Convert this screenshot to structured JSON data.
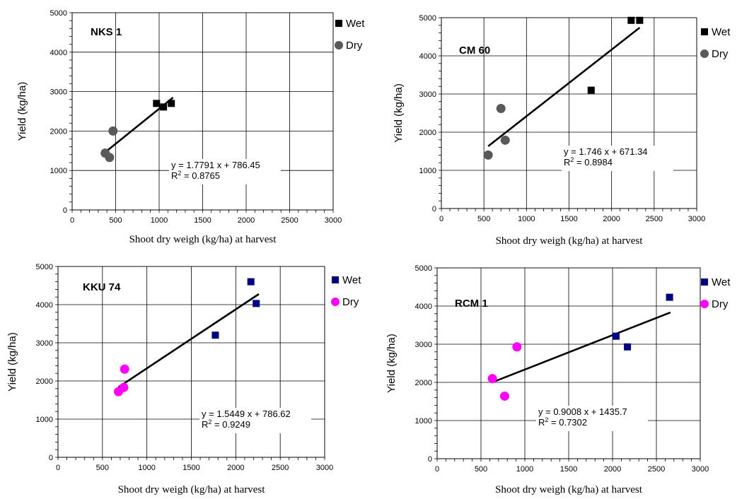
{
  "chart_data": [
    {
      "type": "scatter",
      "title": "NKS 1",
      "xlabel": "Shoot dry weigh (kg/ha) at harvest",
      "ylabel": "Yield (kg/ha)",
      "xlim": [
        0,
        3000
      ],
      "ylim": [
        0,
        5000
      ],
      "xticks": [
        "0",
        "500",
        "1000",
        "1500",
        "2000",
        "2500",
        "3000"
      ],
      "yticks": [
        "0",
        "1000",
        "2000",
        "3000",
        "4000",
        "5000"
      ],
      "grid": true,
      "legend_position": "top-right",
      "series": [
        {
          "name": "Wet",
          "marker": "square",
          "color": "#000000",
          "points": [
            [
              970,
              2700
            ],
            [
              1050,
              2610
            ],
            [
              1140,
              2700
            ]
          ]
        },
        {
          "name": "Dry",
          "marker": "circle",
          "color": "#595959",
          "points": [
            [
              380,
              1440
            ],
            [
              430,
              1330
            ],
            [
              470,
              2000
            ]
          ]
        }
      ],
      "trendline": {
        "x": [
          380,
          1160
        ],
        "y": [
          1462,
          2850
        ],
        "color": "#000000"
      },
      "equation": {
        "line1": "y = 1.7791 x + 786.45",
        "line2_prefix": "R",
        "line2_sup": "2",
        "line2_rest": " = 0.8765"
      }
    },
    {
      "type": "scatter",
      "title": "CM 60",
      "xlabel": "Shoot dry weigh (kg/ha) at harvest",
      "ylabel": "Yield (kg/ha)",
      "xlim": [
        0,
        3000
      ],
      "ylim": [
        0,
        5000
      ],
      "xticks": [
        "0",
        "500",
        "1000",
        "1500",
        "2000",
        "2500",
        "3000"
      ],
      "yticks": [
        "0",
        "1000",
        "2000",
        "3000",
        "4000",
        "5000"
      ],
      "grid": true,
      "legend_position": "top-right",
      "series": [
        {
          "name": "Wet",
          "marker": "square",
          "color": "#000000",
          "points": [
            [
              1760,
              3100
            ],
            [
              2230,
              4930
            ],
            [
              2330,
              4930
            ]
          ]
        },
        {
          "name": "Dry",
          "marker": "circle",
          "color": "#595959",
          "points": [
            [
              550,
              1400
            ],
            [
              700,
              2620
            ],
            [
              750,
              1790
            ]
          ]
        }
      ],
      "trendline": {
        "x": [
          550,
          2330
        ],
        "y": [
          1632,
          4739
        ],
        "color": "#000000"
      },
      "equation": {
        "line1": "y = 1.746 x + 671.34",
        "line2_prefix": "R",
        "line2_sup": "2",
        "line2_rest": " = 0.8984"
      }
    },
    {
      "type": "scatter",
      "title": "KKU 74",
      "xlabel": "Shoot dry weigh (kg/ha) at harvest",
      "ylabel": "Yield (kg/ha)",
      "xlim": [
        0,
        3000
      ],
      "ylim": [
        0,
        5000
      ],
      "xticks": [
        "0",
        "500",
        "1000",
        "1500",
        "2000",
        "2500",
        "3000"
      ],
      "yticks": [
        "0",
        "1000",
        "2000",
        "3000",
        "4000",
        "5000"
      ],
      "grid": true,
      "legend_position": "top-right",
      "series": [
        {
          "name": "Wet",
          "marker": "square",
          "color": "#000080",
          "points": [
            [
              1770,
              3200
            ],
            [
              2170,
              4600
            ],
            [
              2230,
              4030
            ]
          ]
        },
        {
          "name": "Dry",
          "marker": "circle",
          "color": "#FF00FF",
          "points": [
            [
              680,
              1720
            ],
            [
              740,
              1830
            ],
            [
              750,
              2310
            ]
          ]
        }
      ],
      "trendline": {
        "x": [
          680,
          2260
        ],
        "y": [
          1837,
          4278
        ],
        "color": "#000000"
      },
      "equation": {
        "line1": "y = 1.5449 x + 786.62",
        "line2_prefix": "R",
        "line2_sup": "2",
        "line2_rest": " = 0.9249"
      }
    },
    {
      "type": "scatter",
      "title": "RCM 1",
      "xlabel": "Shoot dry weigh (kg/ha) at harvest",
      "ylabel": "Yield (kg/ha)",
      "xlim": [
        0,
        3000
      ],
      "ylim": [
        0,
        5000
      ],
      "xticks": [
        "0",
        "500",
        "1000",
        "1500",
        "2000",
        "2500",
        "3000"
      ],
      "yticks": [
        "0",
        "1000",
        "2000",
        "3000",
        "4000",
        "5000"
      ],
      "grid": true,
      "legend_position": "top-right",
      "series": [
        {
          "name": "Wet",
          "marker": "square",
          "color": "#000080",
          "points": [
            [
              2040,
              3210
            ],
            [
              2170,
              2930
            ],
            [
              2650,
              4230
            ]
          ]
        },
        {
          "name": "Dry",
          "marker": "circle",
          "color": "#FF00FF",
          "points": [
            [
              630,
              2100
            ],
            [
              770,
              1640
            ],
            [
              910,
              2930
            ]
          ]
        }
      ],
      "trendline": {
        "x": [
          630,
          2660
        ],
        "y": [
          2003,
          3832
        ],
        "color": "#000000"
      },
      "equation": {
        "line1": "y = 0.9008 x + 1435.7",
        "line2_prefix": "R",
        "line2_sup": "2",
        "line2_rest": " = 0.7302"
      }
    }
  ]
}
